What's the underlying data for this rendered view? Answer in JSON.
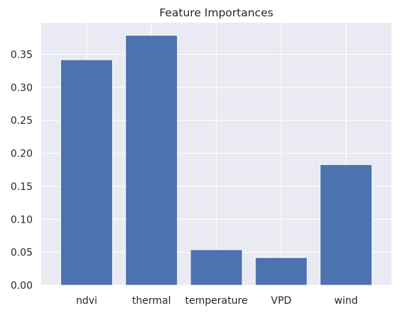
{
  "chart_data": {
    "type": "bar",
    "title": "Feature Importances",
    "xlabel": "",
    "ylabel": "",
    "categories": [
      "ndvi",
      "thermal",
      "temperature",
      "VPD",
      "wind"
    ],
    "values": [
      0.342,
      0.379,
      0.054,
      0.042,
      0.183
    ],
    "ylim": [
      0,
      0.398
    ],
    "yticks": [
      0.0,
      0.05,
      0.1,
      0.15,
      0.2,
      0.25,
      0.3,
      0.35
    ],
    "ytick_labels": [
      "0.00",
      "0.05",
      "0.10",
      "0.15",
      "0.20",
      "0.25",
      "0.30",
      "0.35"
    ],
    "grid": true,
    "legend": "none",
    "colors": {
      "bar": "#4c72b0",
      "plot_background": "#eaeaf2",
      "grid": "#ffffff",
      "text": "#262626"
    }
  }
}
